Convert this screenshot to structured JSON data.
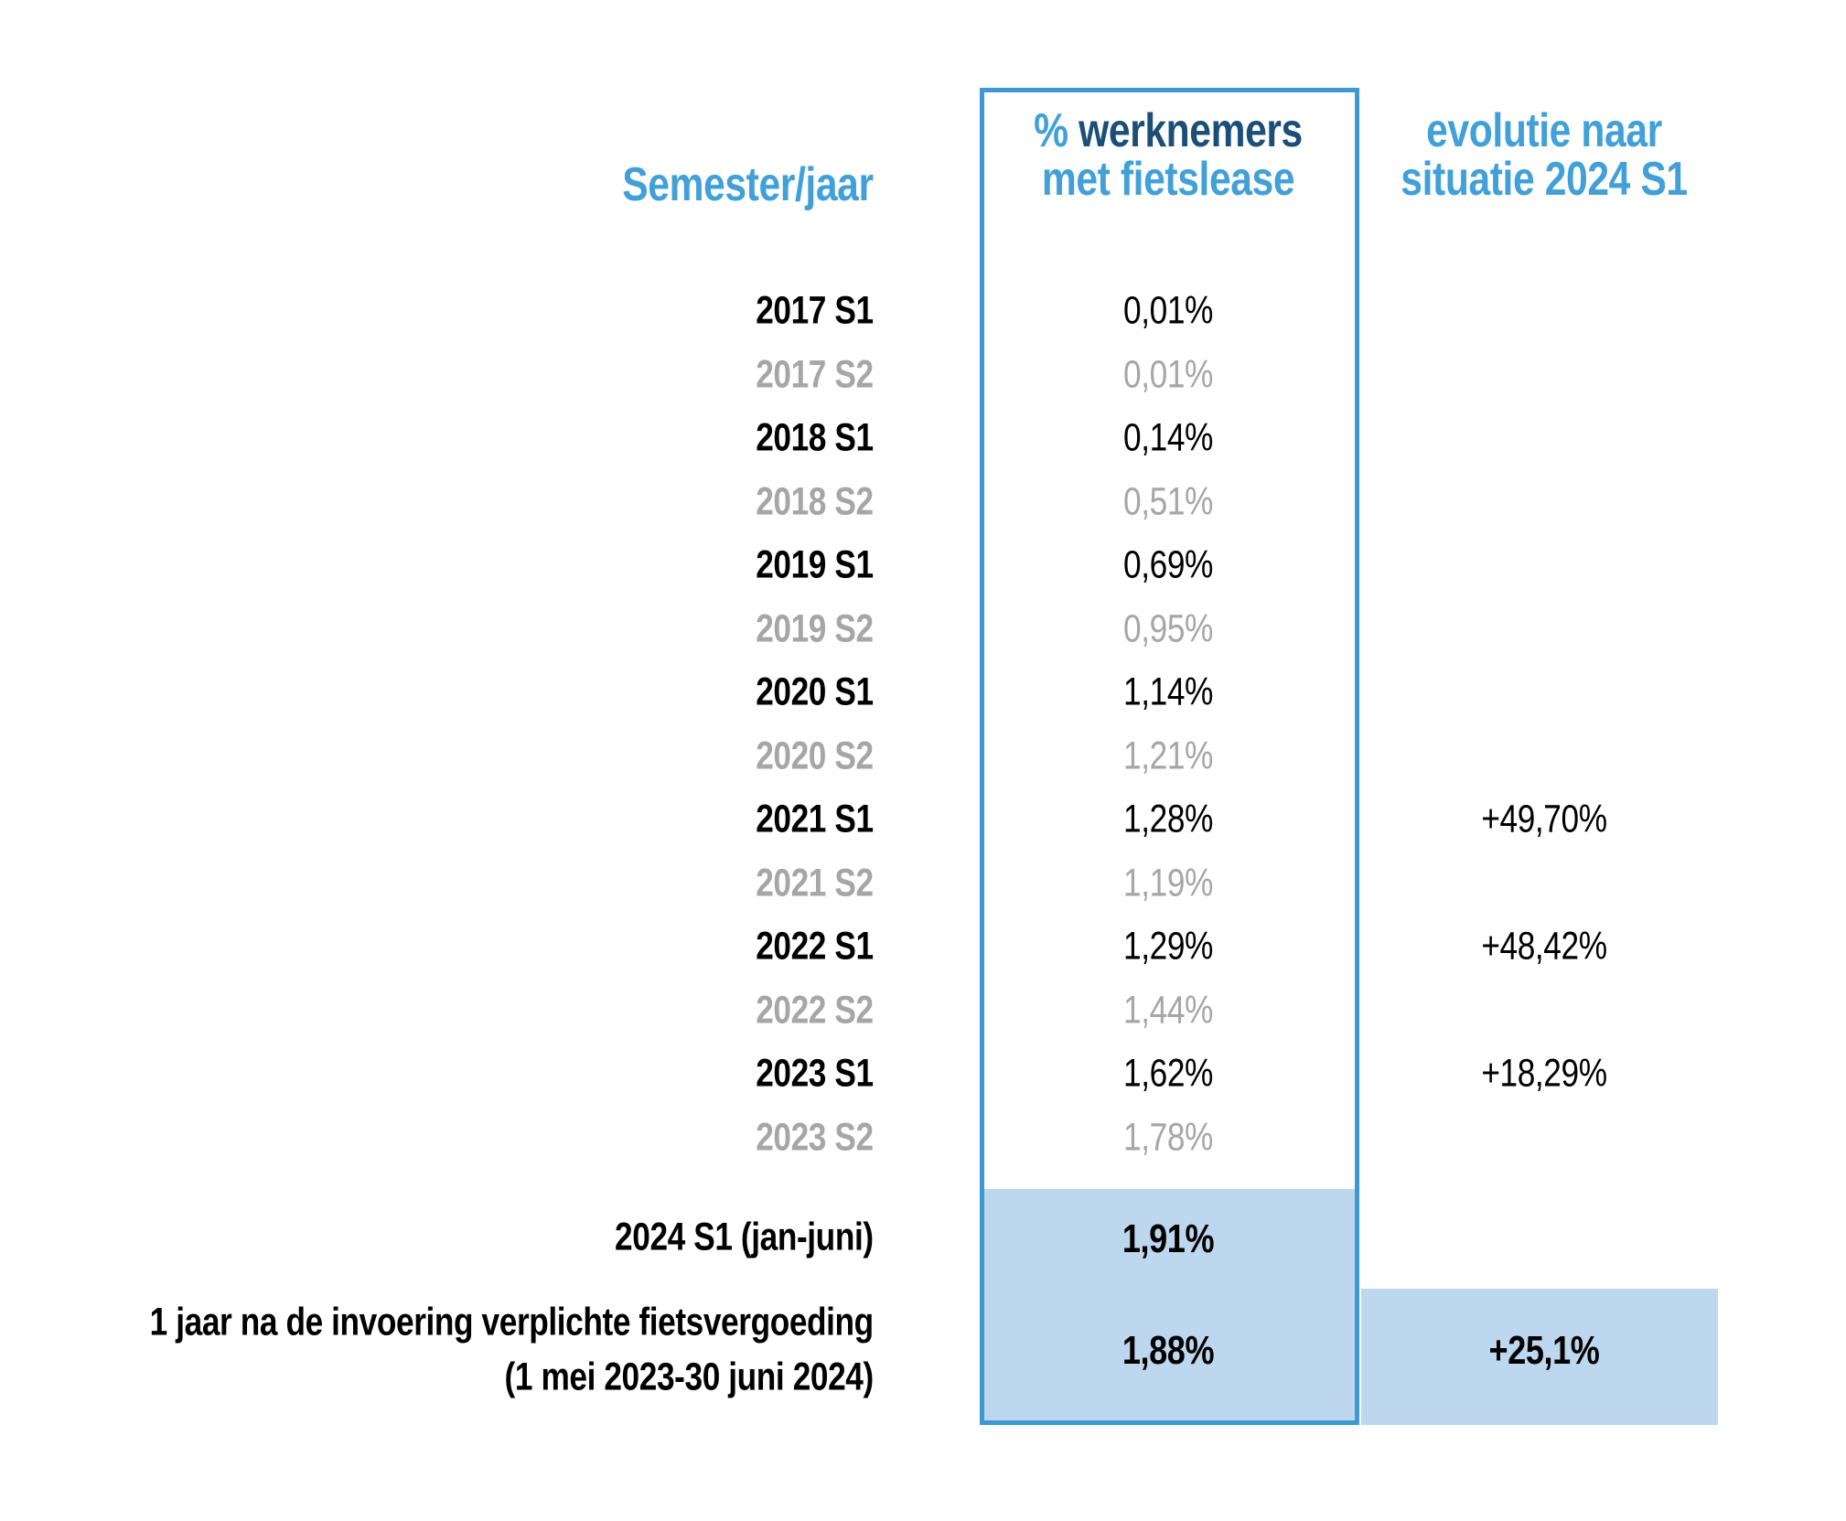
{
  "colors": {
    "light_blue": "#42a0d8",
    "navy": "#1b4f78",
    "border_blue": "#3e98d3",
    "highlight_fill": "#bdd7ee",
    "muted_gray": "#a6a6a6",
    "text_black": "#000000"
  },
  "headers": {
    "semester": "Semester/jaar",
    "col2_line1_pct": "% ",
    "col2_line1_rest": "werknemers",
    "col2_line2": "met fietslease",
    "col3_line1": "evolutie naar",
    "col3_line2": "situatie 2024 S1"
  },
  "rows": [
    {
      "label": "2017 S1",
      "value": "0,01%",
      "evolution": "",
      "muted": false
    },
    {
      "label": "2017 S2",
      "value": "0,01%",
      "evolution": "",
      "muted": true
    },
    {
      "label": "2018 S1",
      "value": "0,14%",
      "evolution": "",
      "muted": false
    },
    {
      "label": "2018 S2",
      "value": "0,51%",
      "evolution": "",
      "muted": true
    },
    {
      "label": "2019 S1",
      "value": "0,69%",
      "evolution": "",
      "muted": false
    },
    {
      "label": "2019 S2",
      "value": "0,95%",
      "evolution": "",
      "muted": true
    },
    {
      "label": "2020 S1",
      "value": "1,14%",
      "evolution": "",
      "muted": false
    },
    {
      "label": "2020 S2",
      "value": "1,21%",
      "evolution": "",
      "muted": true
    },
    {
      "label": "2021 S1",
      "value": "1,28%",
      "evolution": "+49,70%",
      "muted": false
    },
    {
      "label": "2021 S2",
      "value": "1,19%",
      "evolution": "",
      "muted": true
    },
    {
      "label": "2022 S1",
      "value": "1,29%",
      "evolution": "+48,42%",
      "muted": false
    },
    {
      "label": "2022 S2",
      "value": "1,44%",
      "evolution": "",
      "muted": true
    },
    {
      "label": "2023 S1",
      "value": "1,62%",
      "evolution": "+18,29%",
      "muted": false
    },
    {
      "label": "2023 S2",
      "value": "1,78%",
      "evolution": "",
      "muted": true
    }
  ],
  "row_2024": {
    "label": "2024 S1 (jan-juni)",
    "value": "1,91%"
  },
  "row_1yr": {
    "label_line1": "1 jaar na de invoering verplichte fietsvergoeding",
    "label_line2": "(1 mei 2023-30 juni 2024)",
    "value": "1,88%",
    "evolution": "+25,1%"
  },
  "chart_data": {
    "type": "table",
    "title": "",
    "columns": [
      "Semester/jaar",
      "% werknemers met fietslease",
      "evolutie naar situatie 2024 S1"
    ],
    "rows": [
      [
        "2017 S1",
        "0,01%",
        ""
      ],
      [
        "2017 S2",
        "0,01%",
        ""
      ],
      [
        "2018 S1",
        "0,14%",
        ""
      ],
      [
        "2018 S2",
        "0,51%",
        ""
      ],
      [
        "2019 S1",
        "0,69%",
        ""
      ],
      [
        "2019 S2",
        "0,95%",
        ""
      ],
      [
        "2020 S1",
        "1,14%",
        ""
      ],
      [
        "2020 S2",
        "1,21%",
        ""
      ],
      [
        "2021 S1",
        "1,28%",
        "+49,70%"
      ],
      [
        "2021 S2",
        "1,19%",
        ""
      ],
      [
        "2022 S1",
        "1,29%",
        ""
      ],
      [
        "2022 S2",
        "1,44%",
        ""
      ],
      [
        "2023 S1",
        "1,62%",
        "+18,29%"
      ],
      [
        "2023 S2",
        "1,78%",
        ""
      ],
      [
        "2024 S1 (jan-juni)",
        "1,91%",
        ""
      ],
      [
        "1 jaar na de invoering verplichte fietsvergoeding (1 mei 2023-30 juni 2024)",
        "1,88%",
        "+25,1%"
      ]
    ],
    "notes": {
      "row_2022_S1_evolution": "+48,42%",
      "highlighted_rows": [
        "2024 S1 (jan-juni)",
        "1 jaar na de invoering verplichte fietsvergoeding (1 mei 2023-30 juni 2024)"
      ],
      "muted_rows": [
        "2017 S2",
        "2018 S2",
        "2019 S2",
        "2020 S2",
        "2021 S2",
        "2022 S2",
        "2023 S2"
      ],
      "layout": "percentage column framed in blue box; bottom rows highlighted light blue"
    }
  }
}
